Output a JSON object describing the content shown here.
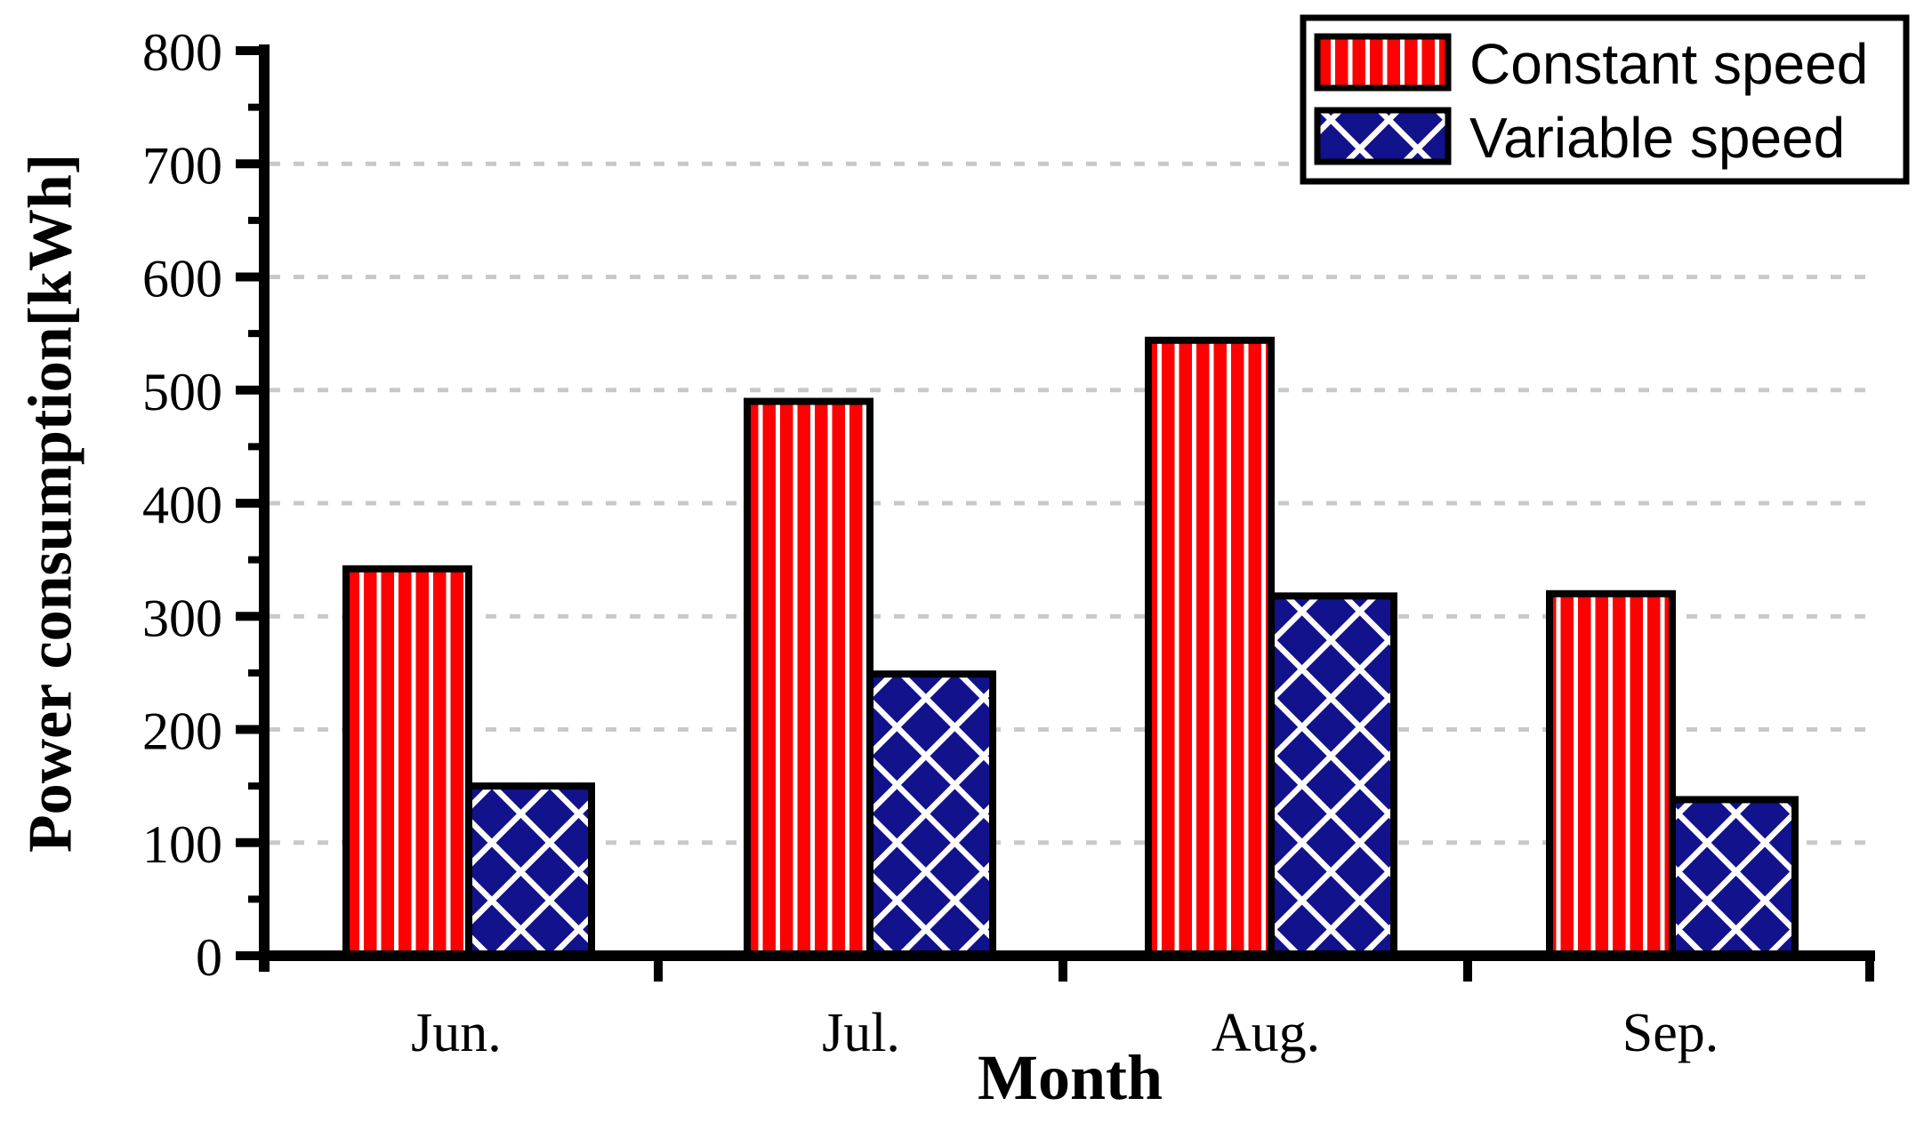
{
  "chart_data": {
    "type": "bar",
    "title": "",
    "categories": [
      "Jun.",
      "Jul.",
      "Aug.",
      "Sep."
    ],
    "series": [
      {
        "name": "Constant speed",
        "color": "#FE0000",
        "pattern": "vertical-stripes",
        "values": [
          342,
          490,
          544,
          320
        ]
      },
      {
        "name": "Variable speed",
        "color": "#12128C",
        "pattern": "diagonal-crosshatch",
        "values": [
          150,
          249,
          318,
          138
        ]
      }
    ],
    "xlabel": "Month",
    "ylabel": "Power consumption[kWh]",
    "ylim": [
      0,
      800
    ],
    "ytick_step": 100,
    "yminor_step": 50,
    "grid": "horizontal-dashed",
    "legend_position": "top-right"
  },
  "colors": {
    "background": "#FFFFFF",
    "axis": "#000000",
    "gridline": "#C9C9C9",
    "pattern_stripe": "#FFFFFF"
  }
}
